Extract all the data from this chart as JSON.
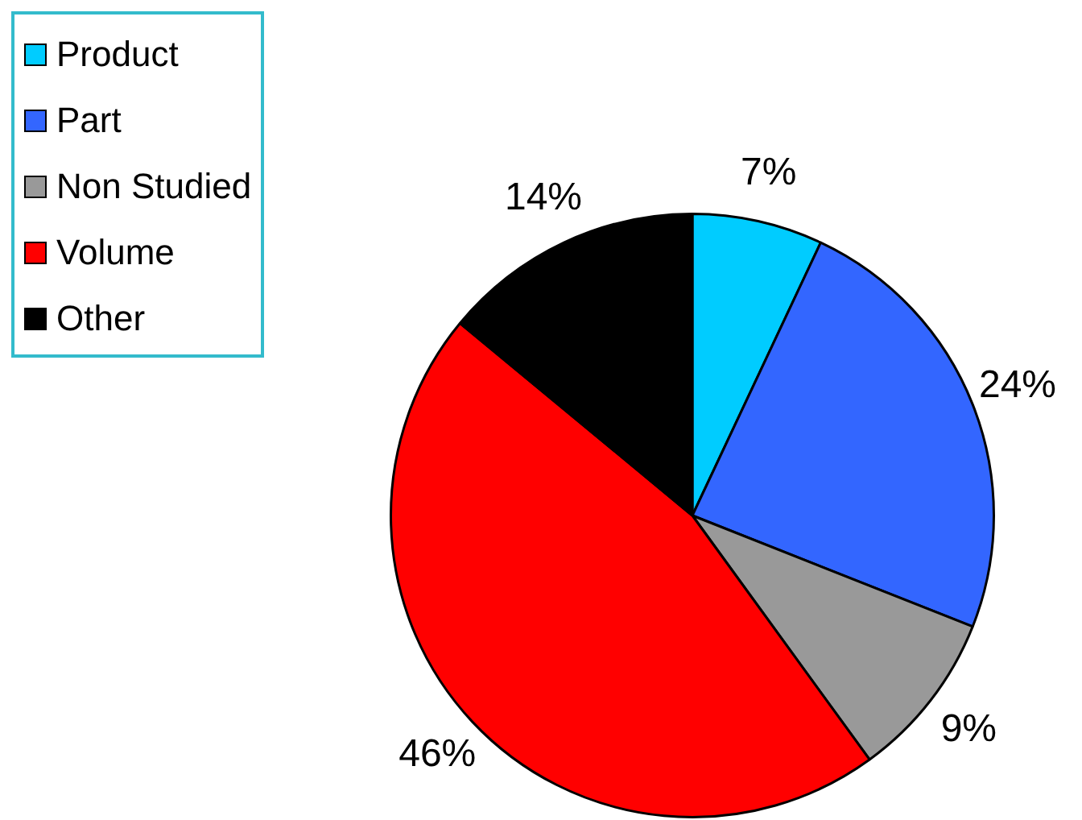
{
  "chart_data": {
    "type": "pie",
    "categories": [
      "Product",
      "Part",
      "Non Studied",
      "Volume",
      "Other"
    ],
    "values": [
      7,
      24,
      9,
      46,
      14
    ],
    "colors": [
      "#00ccff",
      "#3366ff",
      "#999999",
      "#ff0000",
      "#000000"
    ],
    "value_labels": [
      "7%",
      "24%",
      "9%",
      "46%",
      "14%"
    ],
    "legend": "top left"
  }
}
